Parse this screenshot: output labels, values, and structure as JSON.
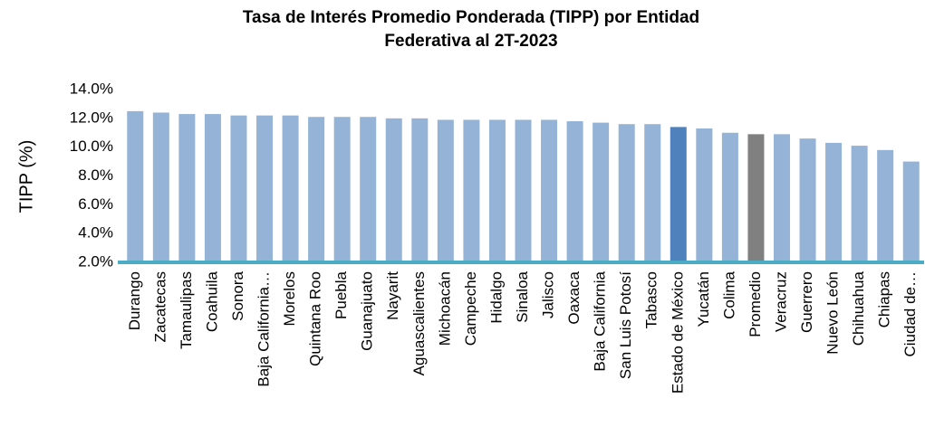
{
  "chart_data": {
    "type": "bar",
    "title": [
      "Tasa de Interés Promedio Ponderada (TIPP) por Entidad",
      "Federativa al 2T-2023"
    ],
    "y_label": "TIPP (%)",
    "categories": [
      "Durango",
      "Zacatecas",
      "Tamaulipas",
      "Coahuila",
      "Sonora",
      "Baja California…",
      "Morelos",
      "Quintana Roo",
      "Puebla",
      "Guanajuato",
      "Nayarit",
      "Aguascalientes",
      "Michoacán",
      "Campeche",
      "Hidalgo",
      "Sinaloa",
      "Jalisco",
      "Oaxaca",
      "Baja California",
      "San Luis Potosí",
      "Tabasco",
      "Estado de México",
      "Yucatán",
      "Colima",
      "Promedio",
      "Veracruz",
      "Guerrero",
      "Nuevo León",
      "Chihuahua",
      "Chiapas",
      "Ciudad de…"
    ],
    "values": [
      12.5,
      12.4,
      12.3,
      12.3,
      12.2,
      12.2,
      12.2,
      12.1,
      12.1,
      12.1,
      12.0,
      12.0,
      11.9,
      11.9,
      11.9,
      11.9,
      11.9,
      11.8,
      11.7,
      11.6,
      11.6,
      11.4,
      11.3,
      11.0,
      10.9,
      10.9,
      10.6,
      10.3,
      10.1,
      9.8,
      9.0
    ],
    "colors": [
      "#95b3d7",
      "#95b3d7",
      "#95b3d7",
      "#95b3d7",
      "#95b3d7",
      "#95b3d7",
      "#95b3d7",
      "#95b3d7",
      "#95b3d7",
      "#95b3d7",
      "#95b3d7",
      "#95b3d7",
      "#95b3d7",
      "#95b3d7",
      "#95b3d7",
      "#95b3d7",
      "#95b3d7",
      "#95b3d7",
      "#95b3d7",
      "#95b3d7",
      "#95b3d7",
      "#4f81bd",
      "#95b3d7",
      "#95b3d7",
      "#808080",
      "#95b3d7",
      "#95b3d7",
      "#95b3d7",
      "#95b3d7",
      "#95b3d7",
      "#95b3d7"
    ],
    "axis_color": "#4bacc6",
    "ylim": [
      2,
      14
    ],
    "yticks": [
      {
        "value": 2,
        "label": "2.0%"
      },
      {
        "value": 4,
        "label": "4.0%"
      },
      {
        "value": 6,
        "label": "6.0%"
      },
      {
        "value": 8,
        "label": "8.0%"
      },
      {
        "value": 10,
        "label": "10.0%"
      },
      {
        "value": 12,
        "label": "12.0%"
      },
      {
        "value": 14,
        "label": "14.0%"
      }
    ],
    "grid": false
  }
}
